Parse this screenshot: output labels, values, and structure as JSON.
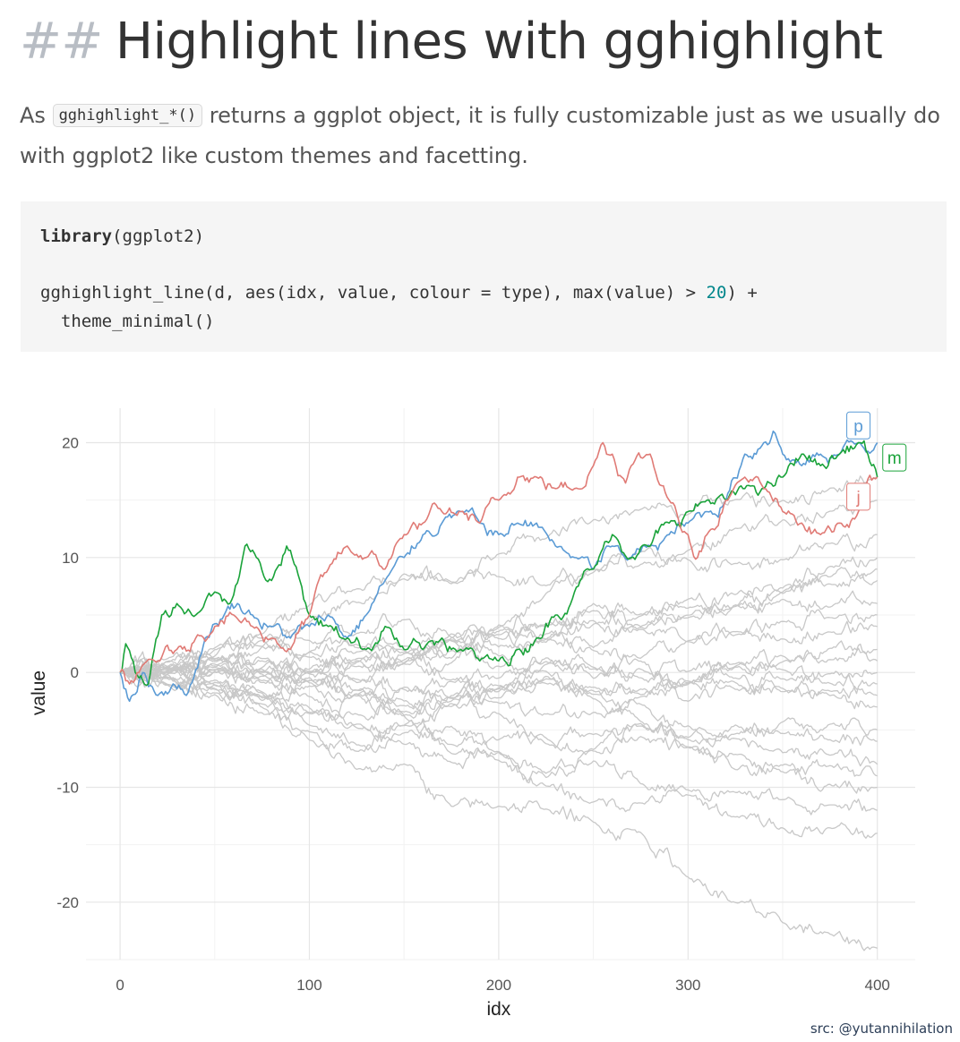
{
  "heading": {
    "hashes": "##",
    "title": "Highlight lines with gghighlight"
  },
  "intro": {
    "before": "As ",
    "code": "gghighlight_*()",
    "after": " returns a ggplot object, it is fully customizable just as we usually do with ggplot2 like custom themes and facetting."
  },
  "code_block": {
    "line1_kw": "library",
    "line1_rest": "(ggplot2)",
    "line2_before": "gghighlight_line(d, aes(idx, value, colour = type), max(value) > ",
    "line2_num": "20",
    "line2_after": ") +",
    "line3": "  theme_minimal()"
  },
  "credit": "src: @yutannihilation",
  "colors": {
    "p": "#5b9bd5",
    "m": "#1aa33a",
    "j": "#e07b76",
    "background_lines": "#c8c8c8"
  },
  "chart_data": {
    "type": "line",
    "xlabel": "idx",
    "ylabel": "value",
    "xlim": [
      -18,
      420
    ],
    "ylim": [
      -25,
      23
    ],
    "x_ticks": [
      0,
      100,
      200,
      300,
      400
    ],
    "y_ticks": [
      -20,
      -10,
      0,
      10,
      20
    ],
    "grid": true,
    "legend": "direct labels at line ends",
    "background_series_count": 23,
    "background_series_end_values": [
      17,
      15,
      12,
      10,
      9,
      8,
      6,
      5,
      4,
      2,
      1,
      0,
      -1,
      -2,
      -3,
      -5,
      -6,
      -8,
      -9,
      -10,
      -12,
      -14,
      -24
    ],
    "series": [
      {
        "name": "p",
        "color": "#5b9bd5",
        "x": [
          0,
          5,
          12,
          20,
          28,
          35,
          45,
          55,
          62,
          70,
          80,
          90,
          100,
          110,
          120,
          130,
          140,
          150,
          160,
          170,
          180,
          190,
          200,
          210,
          220,
          230,
          240,
          250,
          260,
          270,
          280,
          290,
          300,
          310,
          320,
          330,
          340,
          345,
          350,
          360,
          370,
          380,
          390,
          400
        ],
        "values": [
          0,
          -2.5,
          0,
          -2,
          -1,
          -2,
          3,
          5,
          6,
          5,
          4,
          3,
          4,
          5,
          3,
          5,
          8,
          10,
          12,
          13,
          14,
          13,
          12,
          13,
          13,
          11,
          10,
          9,
          11,
          10,
          11,
          12,
          13,
          14,
          15,
          19,
          20,
          21,
          19,
          18,
          19,
          19,
          20,
          20
        ]
      },
      {
        "name": "m",
        "color": "#1aa33a",
        "x": [
          0,
          3,
          8,
          15,
          22,
          30,
          40,
          50,
          58,
          66,
          72,
          80,
          88,
          95,
          100,
          110,
          120,
          130,
          140,
          150,
          160,
          170,
          180,
          190,
          200,
          210,
          220,
          230,
          240,
          250,
          260,
          270,
          280,
          290,
          300,
          310,
          320,
          330,
          340,
          350,
          360,
          370,
          380,
          390,
          395,
          400
        ],
        "values": [
          0,
          2.5,
          0,
          -1,
          5,
          6,
          5,
          7,
          6,
          11,
          10,
          8,
          11,
          8,
          5,
          4,
          3,
          2,
          4,
          2,
          2,
          3,
          2,
          1,
          1,
          2,
          3,
          5,
          7,
          9,
          12,
          10,
          11,
          13,
          14,
          15,
          15,
          16,
          16,
          17,
          19,
          18,
          19,
          20,
          19,
          17
        ]
      },
      {
        "name": "j",
        "color": "#e07b76",
        "x": [
          0,
          5,
          10,
          20,
          30,
          40,
          50,
          60,
          70,
          80,
          90,
          100,
          110,
          120,
          130,
          140,
          150,
          160,
          170,
          180,
          190,
          200,
          210,
          220,
          230,
          240,
          250,
          255,
          260,
          265,
          270,
          280,
          290,
          300,
          305,
          310,
          320,
          330,
          340,
          350,
          360,
          370,
          380,
          390,
          400
        ],
        "values": [
          0,
          -1,
          0,
          1,
          2,
          3,
          4,
          5,
          4,
          3,
          2,
          5,
          9,
          11,
          10,
          9,
          12,
          13,
          14,
          14,
          13,
          15,
          17,
          17,
          16,
          16,
          18,
          20,
          19,
          17,
          18,
          19,
          15,
          12,
          10,
          12,
          15,
          17,
          16,
          14,
          13,
          12,
          13,
          14,
          17
        ]
      }
    ]
  }
}
